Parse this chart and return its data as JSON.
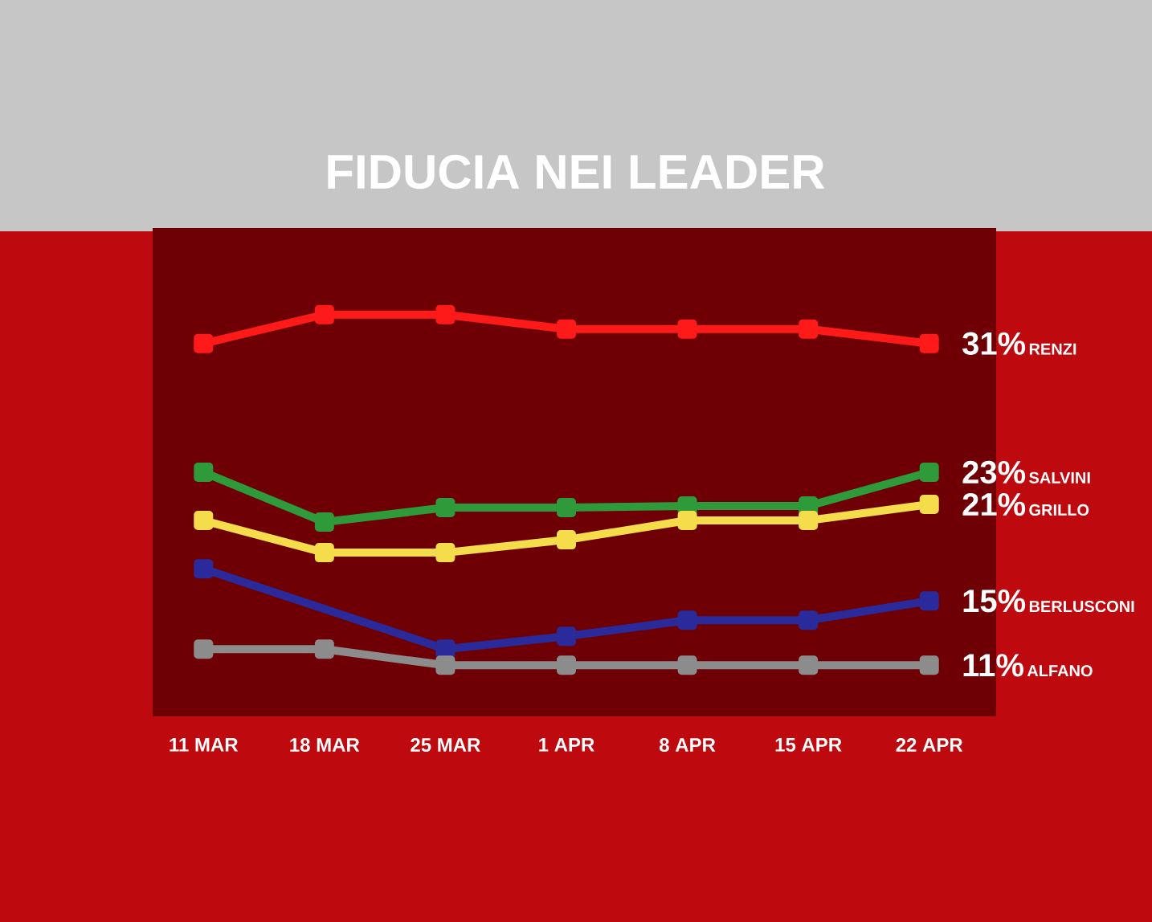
{
  "chart_data": {
    "type": "line",
    "title": "FIDUCIA NEI LEADER",
    "categories": [
      "11 MAR",
      "18 MAR",
      "25 MAR",
      "1 APR",
      "8 APR",
      "15 APR",
      "22 APR"
    ],
    "series": [
      {
        "name": "RENZI",
        "color": "#ff1a1a",
        "values": [
          31,
          32.8,
          32.8,
          31.9,
          31.9,
          31.9,
          31
        ],
        "value_labels": [
          null,
          null,
          null,
          null,
          null,
          null,
          "31%"
        ]
      },
      {
        "name": "SALVINI",
        "color": "#2e9a3a",
        "values": [
          23,
          19.9,
          20.8,
          20.8,
          20.9,
          20.9,
          23
        ],
        "value_labels": [
          null,
          null,
          null,
          null,
          null,
          null,
          "23%"
        ]
      },
      {
        "name": "GRILLO",
        "color": "#f5dc4a",
        "values": [
          20,
          18,
          18,
          18.8,
          20,
          20,
          21
        ],
        "value_labels": [
          null,
          null,
          null,
          null,
          null,
          null,
          "21%"
        ]
      },
      {
        "name": "BERLUSCONI",
        "color": "#2a2a9a",
        "values": [
          17,
          null,
          12,
          12.8,
          13.8,
          13.8,
          15
        ],
        "value_labels": [
          null,
          null,
          null,
          null,
          null,
          null,
          "15%"
        ]
      },
      {
        "name": "ALFANO",
        "color": "#8c8c8c",
        "values": [
          12,
          12,
          11,
          11,
          11,
          11,
          11
        ],
        "value_labels": [
          null,
          null,
          null,
          null,
          null,
          null,
          "11%"
        ]
      }
    ],
    "tick_labels": "x",
    "grid": false,
    "marker": "square",
    "line_style": "solid"
  }
}
